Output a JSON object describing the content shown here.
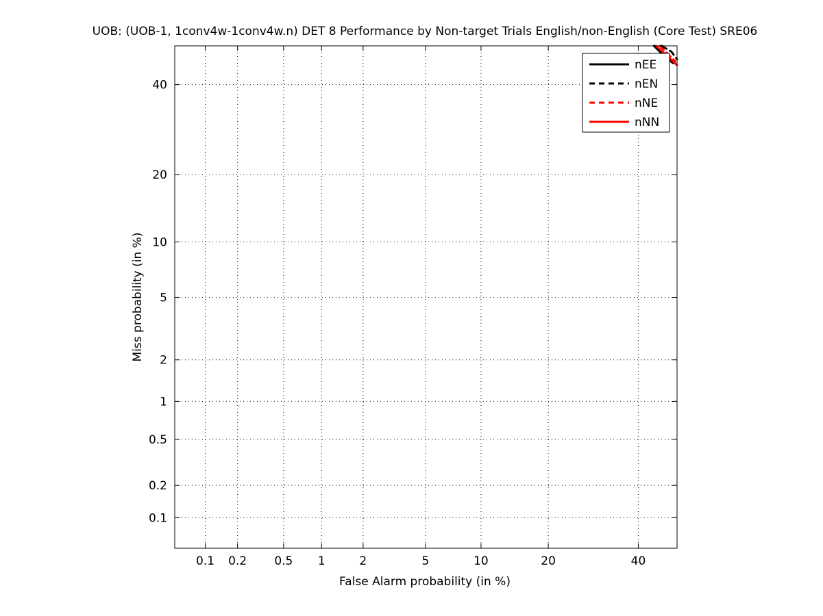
{
  "chart_data": {
    "type": "line",
    "title": "UOB: (UOB-1, 1conv4w-1conv4w.n) DET 8 Performance by Non-target Trials English/non-English (Core Test) SRE06",
    "xlabel": "False Alarm probability (in %)",
    "ylabel": "Miss probability (in %)",
    "x_scale": "probit",
    "y_scale": "probit",
    "xlim": [
      0.05,
      50
    ],
    "ylim": [
      0.05,
      50
    ],
    "x_ticks": [
      {
        "value": 0.1,
        "label": "0.1"
      },
      {
        "value": 0.2,
        "label": "0.2"
      },
      {
        "value": 0.5,
        "label": "0.5"
      },
      {
        "value": 1,
        "label": "1"
      },
      {
        "value": 2,
        "label": "2"
      },
      {
        "value": 5,
        "label": "5"
      },
      {
        "value": 10,
        "label": "10"
      },
      {
        "value": 20,
        "label": "20"
      },
      {
        "value": 40,
        "label": "40"
      }
    ],
    "y_ticks": [
      {
        "value": 0.1,
        "label": "0.1"
      },
      {
        "value": 0.2,
        "label": "0.2"
      },
      {
        "value": 0.5,
        "label": "0.5"
      },
      {
        "value": 1,
        "label": "1"
      },
      {
        "value": 2,
        "label": "2"
      },
      {
        "value": 5,
        "label": "5"
      },
      {
        "value": 10,
        "label": "10"
      },
      {
        "value": 20,
        "label": "20"
      },
      {
        "value": 40,
        "label": "40"
      }
    ],
    "grid": true,
    "legend_position": "top-right",
    "series": [
      {
        "name": "nEE",
        "color": "#000000",
        "dash": "solid",
        "points": [
          [
            44,
            50
          ],
          [
            47,
            47
          ],
          [
            49,
            45.5
          ]
        ]
      },
      {
        "name": "nEN",
        "color": "#000000",
        "dash": "dashed",
        "points": [
          [
            46,
            50
          ],
          [
            48.5,
            48.5
          ],
          [
            50,
            46.5
          ]
        ]
      },
      {
        "name": "nNE",
        "color": "#ff0000",
        "dash": "dashed",
        "points": [
          [
            45.5,
            50
          ],
          [
            47.5,
            48
          ],
          [
            49.5,
            46
          ]
        ]
      },
      {
        "name": "nNN",
        "color": "#ff0000",
        "dash": "solid",
        "points": [
          [
            44.5,
            50
          ],
          [
            47,
            47.8
          ],
          [
            50,
            45
          ]
        ]
      }
    ]
  }
}
